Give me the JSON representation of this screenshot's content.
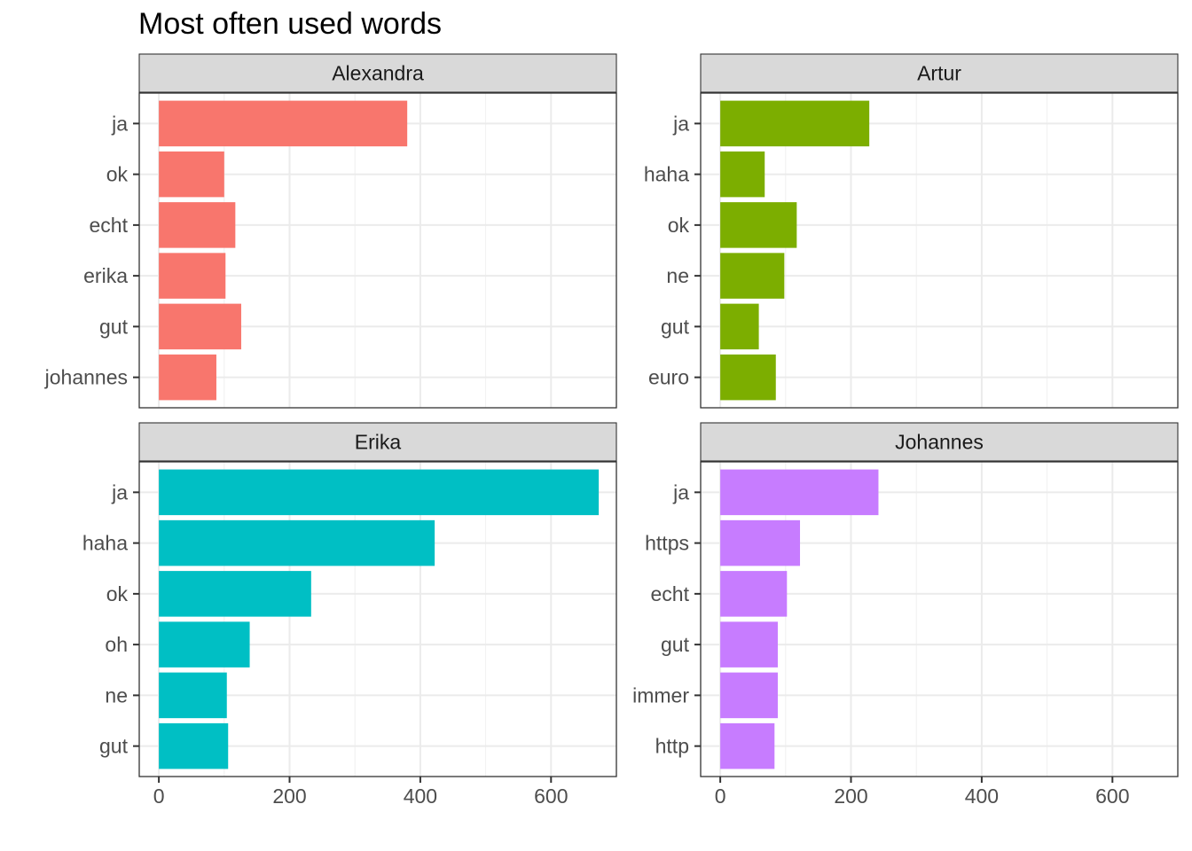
{
  "chart_data": {
    "type": "bar",
    "orientation": "horizontal",
    "title": "Most often used words",
    "xlabel": "",
    "ylabel": "",
    "xlim": [
      -30,
      700
    ],
    "x_ticks": [
      0,
      200,
      400,
      600
    ],
    "grid": true,
    "legend": "none",
    "panels": [
      {
        "name": "Alexandra",
        "color": "#F8766D",
        "categories": [
          "ja",
          "ok",
          "echt",
          "erika",
          "gut",
          "johannes"
        ],
        "values": [
          380,
          100,
          117,
          102,
          126,
          88
        ]
      },
      {
        "name": "Artur",
        "color": "#7CAE00",
        "categories": [
          "ja",
          "haha",
          "ok",
          "ne",
          "gut",
          "euro"
        ],
        "values": [
          228,
          68,
          117,
          98,
          59,
          85
        ]
      },
      {
        "name": "Erika",
        "color": "#00BFC4",
        "categories": [
          "ja",
          "haha",
          "ok",
          "oh",
          "ne",
          "gut"
        ],
        "values": [
          673,
          422,
          233,
          139,
          104,
          106
        ]
      },
      {
        "name": "Johannes",
        "color": "#C77CFF",
        "categories": [
          "ja",
          "https",
          "echt",
          "gut",
          "immer",
          "http"
        ],
        "values": [
          242,
          122,
          102,
          88,
          88,
          83
        ]
      }
    ]
  }
}
